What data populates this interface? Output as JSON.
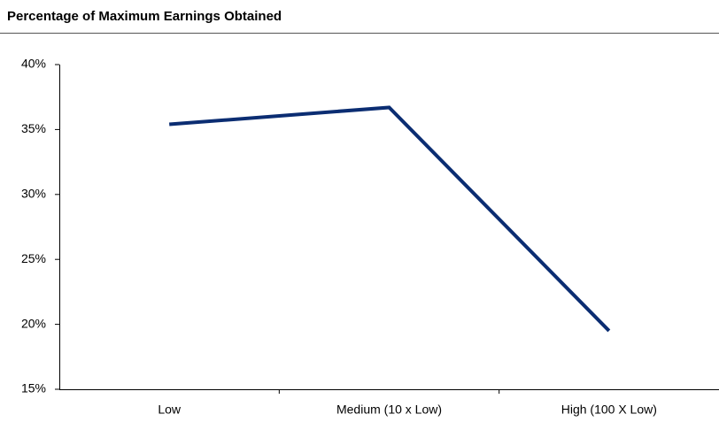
{
  "chart_data": {
    "type": "line",
    "title": "Percentage of Maximum Earnings Obtained",
    "categories": [
      "Low",
      "Medium (10 x Low)",
      "High (100 X Low)"
    ],
    "series": [
      {
        "name": "Percentage of Maximum Earnings Obtained",
        "color": "#0b2d72",
        "values": [
          35.4,
          36.7,
          19.5
        ]
      }
    ],
    "ylim": [
      15,
      40
    ],
    "yticks": [
      {
        "value": 15,
        "label": "15%"
      },
      {
        "value": 20,
        "label": "20%"
      },
      {
        "value": 25,
        "label": "25%"
      },
      {
        "value": 30,
        "label": "30%"
      },
      {
        "value": 35,
        "label": "35%"
      },
      {
        "value": 40,
        "label": "40%"
      }
    ],
    "grid": false
  }
}
